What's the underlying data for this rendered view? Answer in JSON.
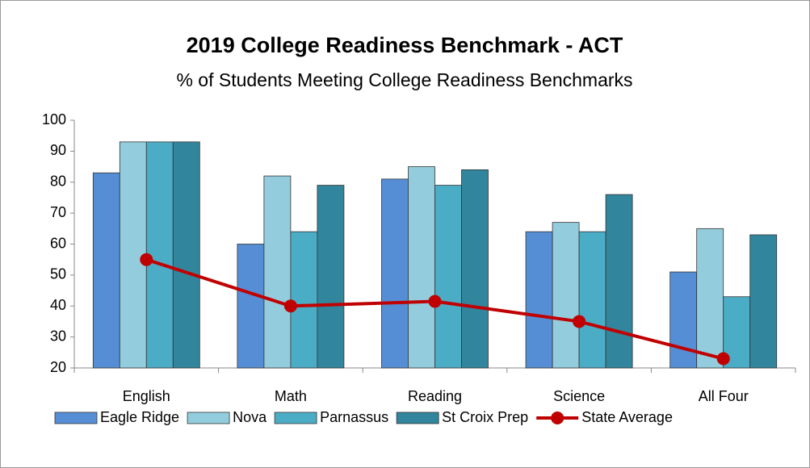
{
  "chart_data": {
    "type": "bar",
    "title": "2019 College Readiness Benchmark - ACT",
    "subtitle": "% of Students Meeting College Readiness Benchmarks",
    "categories": [
      "English",
      "Math",
      "Reading",
      "Science",
      "All Four"
    ],
    "series": [
      {
        "name": "Eagle Ridge",
        "color": "#558ed5",
        "values": [
          83,
          60,
          81,
          64,
          51
        ]
      },
      {
        "name": "Nova",
        "color": "#93cddd",
        "values": [
          93,
          82,
          85,
          67,
          65
        ]
      },
      {
        "name": "Parnassus",
        "color": "#4bacc6",
        "values": [
          93,
          64,
          79,
          64,
          43
        ]
      },
      {
        "name": "St Croix Prep",
        "color": "#31859c",
        "values": [
          93,
          79,
          84,
          76,
          63
        ]
      },
      {
        "name": "State Average",
        "color": "#c00000",
        "type": "line",
        "values": [
          55,
          40,
          41.5,
          35,
          23
        ]
      }
    ],
    "ylim": [
      20,
      100
    ],
    "yticks": [
      20,
      30,
      40,
      50,
      60,
      70,
      80,
      90,
      100
    ],
    "grid": false,
    "legend": "bottom"
  }
}
